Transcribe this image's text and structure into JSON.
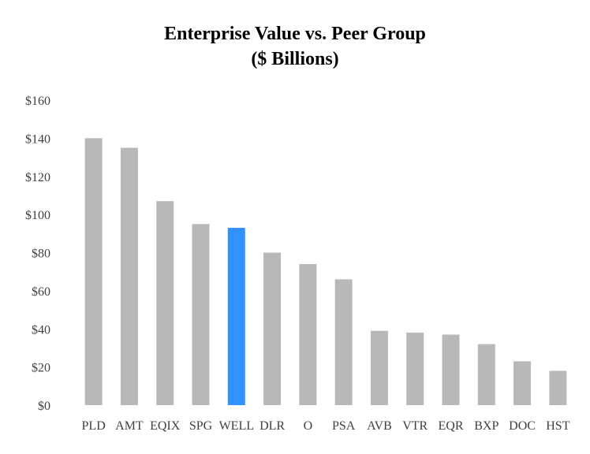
{
  "chart_data": {
    "type": "bar",
    "title": "Enterprise Value vs. Peer Group",
    "subtitle": "($ Billions)",
    "xlabel": "",
    "ylabel": "",
    "ylim": [
      0,
      160
    ],
    "ytick_step": 20,
    "ytick_prefix": "$",
    "grid": false,
    "legend": false,
    "categories": [
      "PLD",
      "AMT",
      "EQIX",
      "SPG",
      "WELL",
      "DLR",
      "O",
      "PSA",
      "AVB",
      "VTR",
      "EQR",
      "BXP",
      "DOC",
      "HST"
    ],
    "values": [
      140,
      135,
      107,
      95,
      93,
      80,
      74,
      66,
      39,
      38,
      37,
      32,
      23,
      18
    ],
    "highlight": "WELL",
    "colors": {
      "bar": "#b8b8b8",
      "highlight": "#3391fc",
      "tick_text": "#404040",
      "title_text": "#000000"
    }
  }
}
